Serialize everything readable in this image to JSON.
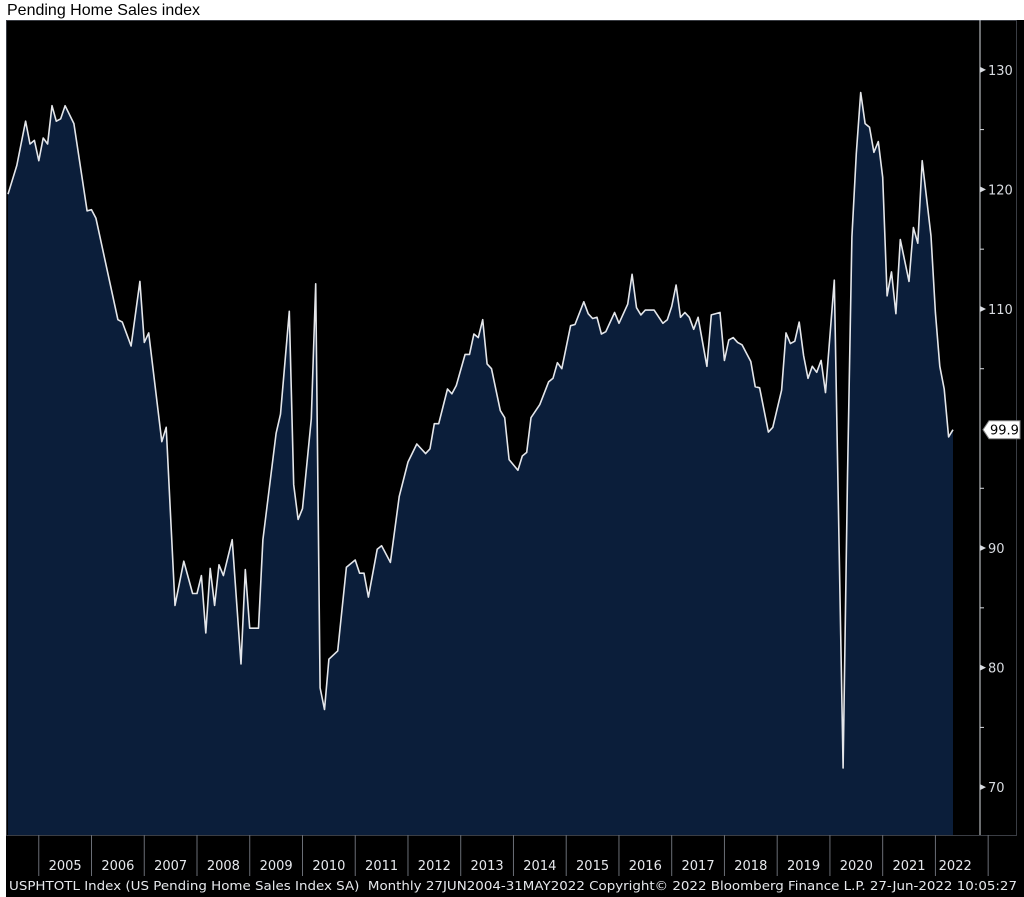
{
  "title": "Pending Home Sales index",
  "footer": "USPHTOTL Index (US Pending Home Sales Index SA)  Monthly 27JUN2004-31MAY2022 Copyright© 2022 Bloomberg Finance L.P. 27-Jun-2022 10:05:27",
  "colors": {
    "background": "#000000",
    "fill": "#0b1e3a",
    "line": "#e4e6ea",
    "axis": "#d8dbe0"
  },
  "chart_data": {
    "type": "area",
    "title": "Pending Home Sales index",
    "xlabel": "",
    "ylabel": "",
    "ylim": [
      66,
      134
    ],
    "xrange": [
      "2004-06",
      "2022-05"
    ],
    "y_axis_position": "right",
    "grid": false,
    "last_value_label": "99.9",
    "yticks": [
      70,
      80,
      90,
      110,
      120,
      130
    ],
    "yticks_labels": [
      "70",
      "80",
      "90",
      "110",
      "120",
      "130"
    ],
    "xticks_labels": [
      "2005",
      "2006",
      "2007",
      "2008",
      "2009",
      "2010",
      "2011",
      "2012",
      "2013",
      "2014",
      "2015",
      "2016",
      "2017",
      "2018",
      "2019",
      "2020",
      "2021",
      "2022"
    ],
    "series": [
      {
        "x": [
          "2004-06",
          "2004-08",
          "2004-10",
          "2004-11",
          "2004-12",
          "2005-01",
          "2005-02",
          "2005-03",
          "2005-04",
          "2005-05",
          "2005-06",
          "2005-07",
          "2005-09",
          "2005-12",
          "2006-01",
          "2006-02",
          "2006-07",
          "2006-08",
          "2006-10",
          "2006-12",
          "2007-01",
          "2007-02",
          "2007-05",
          "2007-06",
          "2007-08",
          "2007-10",
          "2007-12",
          "2008-01",
          "2008-02",
          "2008-03",
          "2008-04",
          "2008-05",
          "2008-06",
          "2008-07",
          "2008-09",
          "2008-11",
          "2008-12",
          "2009-01",
          "2009-03",
          "2009-04",
          "2009-07",
          "2009-08",
          "2009-10",
          "2009-11",
          "2009-12",
          "2010-01",
          "2010-03",
          "2010-04",
          "2010-05",
          "2010-06",
          "2010-07",
          "2010-09",
          "2010-11",
          "2011-01",
          "2011-02",
          "2011-03",
          "2011-04",
          "2011-06",
          "2011-07",
          "2011-09",
          "2011-11",
          "2012-01",
          "2012-03",
          "2012-05",
          "2012-06",
          "2012-07",
          "2012-08",
          "2012-10",
          "2012-11",
          "2012-12",
          "2013-02",
          "2013-03",
          "2013-04",
          "2013-05",
          "2013-06",
          "2013-07",
          "2013-08",
          "2013-10",
          "2013-11",
          "2013-12",
          "2014-02",
          "2014-03",
          "2014-04",
          "2014-05",
          "2014-07",
          "2014-09",
          "2014-10",
          "2014-11",
          "2014-12",
          "2015-02",
          "2015-03",
          "2015-05",
          "2015-06",
          "2015-07",
          "2015-08",
          "2015-09",
          "2015-10",
          "2015-12",
          "2016-01",
          "2016-03",
          "2016-04",
          "2016-05",
          "2016-06",
          "2016-07",
          "2016-09",
          "2016-11",
          "2016-12",
          "2017-01",
          "2017-02",
          "2017-03",
          "2017-04",
          "2017-05",
          "2017-06",
          "2017-07",
          "2017-09",
          "2017-10",
          "2017-12",
          "2018-01",
          "2018-02",
          "2018-03",
          "2018-04",
          "2018-05",
          "2018-07",
          "2018-08",
          "2018-09",
          "2018-11",
          "2018-12",
          "2019-02",
          "2019-03",
          "2019-04",
          "2019-05",
          "2019-06",
          "2019-07",
          "2019-08",
          "2019-09",
          "2019-10",
          "2019-11",
          "2019-12",
          "2020-02",
          "2020-03",
          "2020-04",
          "2020-05",
          "2020-06",
          "2020-07",
          "2020-08",
          "2020-09",
          "2020-10",
          "2020-11",
          "2020-12",
          "2021-01",
          "2021-02",
          "2021-03",
          "2021-04",
          "2021-05",
          "2021-07",
          "2021-08",
          "2021-09",
          "2021-10",
          "2021-12",
          "2022-01",
          "2022-02",
          "2022-03",
          "2022-04",
          "2022-05"
        ],
        "y": [
          119.6,
          122.0,
          125.7,
          123.8,
          124.1,
          122.4,
          124.3,
          123.8,
          127.0,
          125.7,
          125.9,
          127.0,
          125.5,
          118.2,
          118.3,
          117.6,
          109.1,
          108.9,
          106.9,
          112.3,
          107.2,
          108.0,
          98.9,
          100.1,
          85.2,
          88.9,
          86.2,
          86.2,
          87.7,
          82.9,
          88.3,
          85.2,
          88.6,
          87.7,
          90.7,
          80.3,
          88.2,
          83.3,
          83.3,
          90.7,
          99.6,
          101.2,
          109.8,
          95.3,
          92.4,
          93.3,
          100.8,
          112.1,
          78.3,
          76.5,
          80.7,
          81.4,
          88.4,
          89.0,
          87.9,
          87.9,
          85.9,
          89.9,
          90.2,
          88.8,
          94.3,
          97.2,
          98.7,
          97.9,
          98.3,
          100.4,
          100.4,
          103.3,
          102.9,
          103.6,
          106.2,
          106.2,
          107.9,
          107.6,
          109.1,
          105.4,
          105.0,
          101.5,
          100.9,
          97.4,
          96.5,
          97.7,
          98.0,
          100.9,
          102.0,
          103.9,
          104.2,
          105.5,
          105.0,
          108.6,
          108.7,
          110.6,
          109.6,
          109.2,
          109.3,
          107.9,
          108.1,
          109.7,
          108.8,
          110.4,
          112.9,
          110.1,
          109.5,
          109.9,
          109.9,
          108.8,
          109.1,
          110.2,
          112.0,
          109.3,
          109.7,
          109.3,
          108.3,
          109.3,
          105.2,
          109.5,
          109.7,
          105.7,
          107.4,
          107.6,
          107.2,
          107.0,
          105.6,
          103.5,
          103.4,
          99.7,
          100.1,
          103.2,
          108.0,
          107.1,
          107.3,
          108.9,
          106.1,
          104.2,
          105.2,
          104.7,
          105.7,
          103.0,
          112.4,
          92.0,
          71.6,
          96.0,
          116.0,
          123.0,
          128.1,
          125.5,
          125.2,
          123.1,
          124.0,
          121.0,
          111.1,
          113.1,
          109.6,
          115.8,
          112.3,
          116.8,
          115.5,
          122.4,
          116.1,
          109.7,
          105.2,
          103.3,
          99.3,
          99.9
        ]
      }
    ]
  }
}
